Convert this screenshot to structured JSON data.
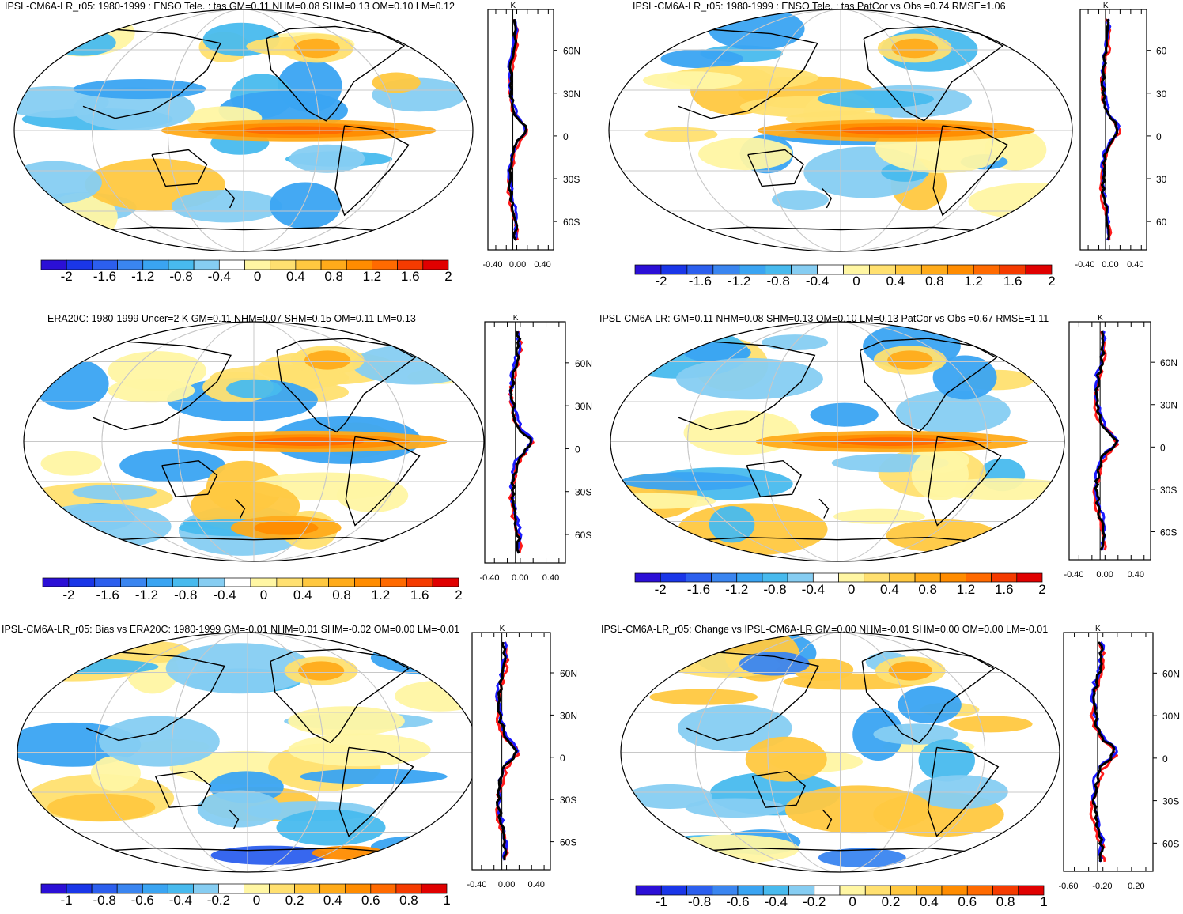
{
  "panels": [
    {
      "title": "IPSL-CM6A-LR_r05: 1980-1999 : ENSO Tele. : tas GM=0.11 NHM=0.08 SHM=0.13 OM=0.10 LM=0.12",
      "colorbar_labels": [
        "-2",
        "-1.6",
        "-1.2",
        "-0.8",
        "-0.4",
        "0",
        "0.4",
        "0.8",
        "1.2",
        "1.6",
        "2"
      ],
      "profile_unit": "K",
      "profile_xticks": [
        "-0.40",
        "0.00",
        "0.40"
      ],
      "profile_yticks": [
        "60N",
        "30N",
        "0",
        "30S",
        "60S"
      ]
    },
    {
      "title": "IPSL-CM6A-LR_r05: 1980-1999 : ENSO Tele. : tas PatCor vs Obs =0.74 RMSE=1.06",
      "colorbar_labels": [
        "-2",
        "-1.6",
        "-1.2",
        "-0.8",
        "-0.4",
        "0",
        "0.4",
        "0.8",
        "1.2",
        "1.6",
        "2"
      ],
      "profile_unit": "K",
      "profile_xticks": [
        "-0.40",
        "0.00",
        "0.40"
      ],
      "profile_yticks": [
        "60",
        "30",
        "0",
        "30",
        "60"
      ]
    },
    {
      "title": "ERA20C: 1980-1999 Uncer=2 K GM=0.11 NHM=0.07 SHM=0.15 OM=0.11 LM=0.13",
      "colorbar_labels": [
        "-2",
        "-1.6",
        "-1.2",
        "-0.8",
        "-0.4",
        "0",
        "0.4",
        "0.8",
        "1.2",
        "1.6",
        "2"
      ],
      "profile_unit": "K",
      "profile_xticks": [
        "-0.40",
        "0.00",
        "0.40"
      ],
      "profile_yticks": [
        "60N",
        "30N",
        "0",
        "30S",
        "60S"
      ]
    },
    {
      "title": "IPSL-CM6A-LR: GM=0.11 NHM=0.08 SHM=0.13 OM=0.10 LM=0.13 PatCor vs Obs =0.67 RMSE=1.11",
      "colorbar_labels": [
        "-2",
        "-1.6",
        "-1.2",
        "-0.8",
        "-0.4",
        "0",
        "0.4",
        "0.8",
        "1.2",
        "1.6",
        "2"
      ],
      "profile_unit": "K",
      "profile_xticks": [
        "-0.40",
        "0.00",
        "0.40"
      ],
      "profile_yticks": [
        "60N",
        "30N",
        "0",
        "30S",
        "60S"
      ]
    },
    {
      "title": "IPSL-CM6A-LR_r05: Bias vs ERA20C: 1980-1999 GM=-0.01 NHM=0.01 SHM=-0.02 OM=0.00 LM=-0.01",
      "colorbar_labels": [
        "-1",
        "-0.8",
        "-0.6",
        "-0.4",
        "-0.2",
        "0",
        "0.2",
        "0.4",
        "0.6",
        "0.8",
        "1"
      ],
      "profile_unit": "K",
      "profile_xticks": [
        "-0.40",
        "0.00",
        "0.40"
      ],
      "profile_yticks": [
        "60N",
        "30N",
        "0",
        "30S",
        "60S"
      ]
    },
    {
      "title": "IPSL-CM6A-LR_r05: Change vs IPSL-CM6A-LR GM=0.00 NHM=-0.01 SHM=0.00 OM=0.00 LM=-0.01",
      "colorbar_labels": [
        "-1",
        "-0.8",
        "-0.6",
        "-0.4",
        "-0.2",
        "0",
        "0.2",
        "0.4",
        "0.6",
        "0.8",
        "1"
      ],
      "profile_unit": "K",
      "profile_xticks": [
        "-0.60",
        "-0.20",
        "0.20"
      ],
      "profile_yticks": [
        "60N",
        "30N",
        "0",
        "30S",
        "60S"
      ]
    }
  ],
  "colors": {
    "palette": [
      "#2b0fd6",
      "#1a36e8",
      "#2c5fee",
      "#3a85f0",
      "#3aa4f2",
      "#48baee",
      "#86cdf2",
      "#ffffff",
      "#ffffff",
      "#fff6a3",
      "#ffe070",
      "#ffc840",
      "#ffab1a",
      "#ff8c00",
      "#ff6a00",
      "#f53b00",
      "#e00000"
    ],
    "model_line": "#1a1aff",
    "obs_line": "#ff1a1a",
    "ref_line": "#000000",
    "grid": "#c8c8c8",
    "coast": "#000000"
  }
}
